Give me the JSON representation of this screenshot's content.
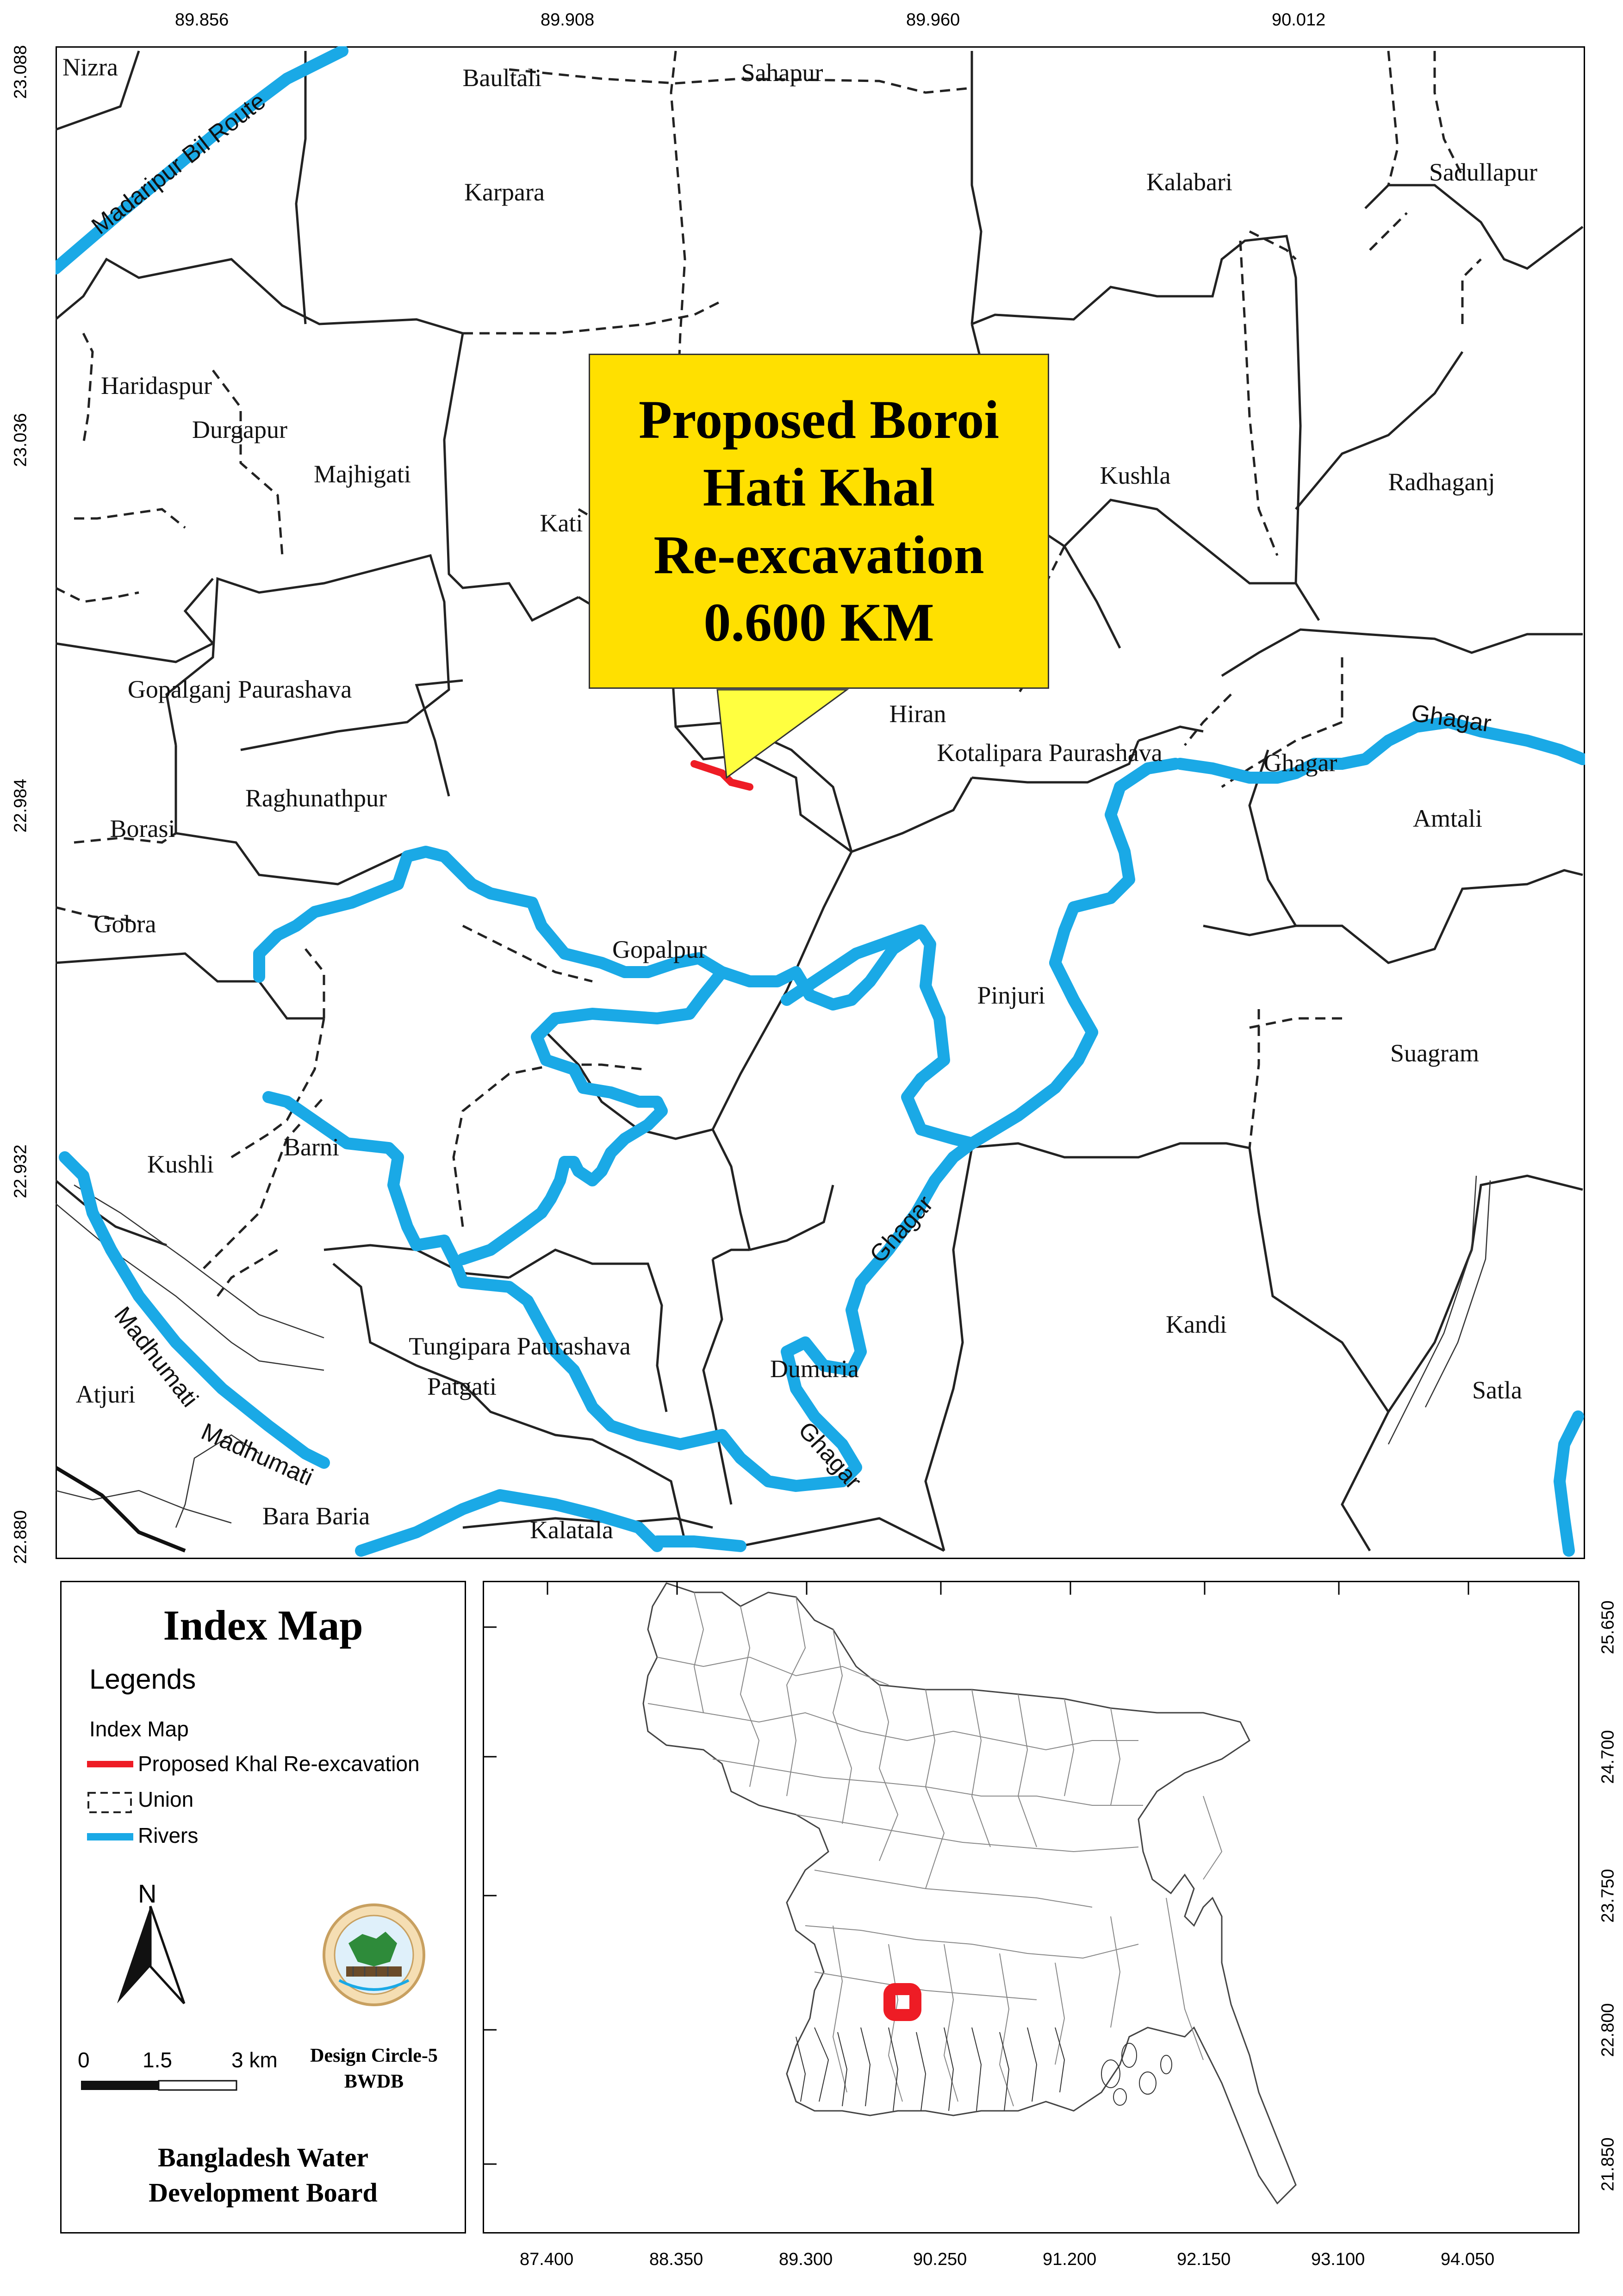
{
  "main_map": {
    "top_ticks": [
      "89.856",
      "89.908",
      "89.960",
      "90.012"
    ],
    "left_ticks": [
      "23.088",
      "23.036",
      "22.984",
      "22.932",
      "22.880"
    ],
    "places": [
      {
        "name": "Nizra"
      },
      {
        "name": "Baultali"
      },
      {
        "name": "Sahapur"
      },
      {
        "name": "Karpara"
      },
      {
        "name": "Kalabari"
      },
      {
        "name": "Sadullapur"
      },
      {
        "name": "Haridaspur"
      },
      {
        "name": "Durgapur"
      },
      {
        "name": "Majhigati"
      },
      {
        "name": "Kati"
      },
      {
        "name": "Kushla"
      },
      {
        "name": "Radhaganj"
      },
      {
        "name": "Gopalganj Paurashava"
      },
      {
        "name": "Hiran"
      },
      {
        "name": "Kotalipara Paurashava"
      },
      {
        "name": "Ghagar"
      },
      {
        "name": "Amtali"
      },
      {
        "name": "Raghunathpur"
      },
      {
        "name": "Borasi"
      },
      {
        "name": "Gobra"
      },
      {
        "name": "Gopalpur"
      },
      {
        "name": "Pinjuri"
      },
      {
        "name": "Suagram"
      },
      {
        "name": "Kushli"
      },
      {
        "name": "Barni"
      },
      {
        "name": "Kandi"
      },
      {
        "name": "Tungipara Paurashava"
      },
      {
        "name": "Patgati"
      },
      {
        "name": "Dumuria"
      },
      {
        "name": "Satla"
      },
      {
        "name": "Atjuri"
      },
      {
        "name": "Bara Baria"
      },
      {
        "name": "Kalatala"
      }
    ],
    "river_labels": [
      {
        "text": "Madaripur Bil Route"
      },
      {
        "text": "Ghagar"
      },
      {
        "text": "Ghagar"
      },
      {
        "text": "Ghagar"
      },
      {
        "text": "Madhumati"
      },
      {
        "text": "Madhumati"
      }
    ],
    "callout": {
      "lines": [
        "Proposed Boroi",
        "Hati  Khal",
        "Re-excavation",
        "0.600 KM"
      ],
      "fill": "#ffe000"
    },
    "colors": {
      "river": "#1aa9e6",
      "canal": "#ee1c25",
      "boundary": "#222222"
    }
  },
  "legend_panel": {
    "title": "Index Map",
    "legends_heading": "Legends",
    "subheading": "Index Map",
    "items": [
      {
        "label": "Proposed Khal Re-excavation",
        "symbol": "red-line"
      },
      {
        "label": "Union",
        "symbol": "dashed-box"
      },
      {
        "label": "Rivers",
        "symbol": "blue-line"
      }
    ],
    "north_label": "N",
    "scale": {
      "labels": [
        "0",
        "1.5",
        "3 km"
      ]
    },
    "design_credit": [
      "Design Circle-5",
      "BWDB"
    ],
    "org_name": [
      "Bangladesh Water",
      "Development Board"
    ]
  },
  "index_map": {
    "bottom_ticks": [
      "87.400",
      "88.350",
      "89.300",
      "90.250",
      "91.200",
      "92.150",
      "93.100",
      "94.050"
    ],
    "right_ticks": [
      "25.650",
      "24.700",
      "23.750",
      "22.800",
      "21.850"
    ],
    "marker_color": "#ee1c25"
  }
}
